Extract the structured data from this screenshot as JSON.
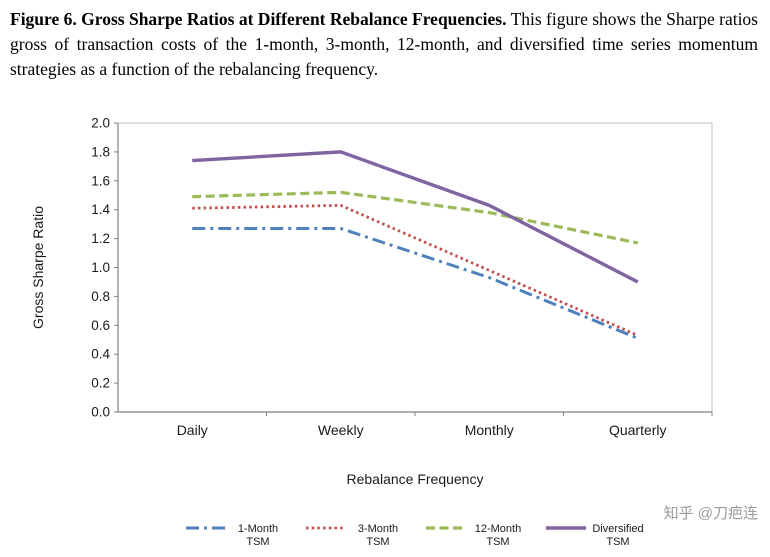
{
  "caption": {
    "bold": "Figure 6. Gross Sharpe Ratios at Different Rebalance Frequencies.",
    "rest": " This figure shows the Sharpe ratios gross of transaction costs of the 1-month, 3-month, 12-month, and diversified time series momentum strategies as a function of the rebalancing frequency."
  },
  "watermark": {
    "text": "知乎 @刀疤连"
  },
  "chart_data": {
    "type": "line",
    "title": "",
    "categories": [
      "Daily",
      "Weekly",
      "Monthly",
      "Quarterly"
    ],
    "series": [
      {
        "name": "1-Month TSM",
        "legend_lines": [
          "1-Month",
          "TSM"
        ],
        "values": [
          1.27,
          1.27,
          0.93,
          0.51
        ],
        "color": "#4F81BD",
        "dash": "dash-dot"
      },
      {
        "name": "3-Month TSM",
        "legend_lines": [
          "3-Month",
          "TSM"
        ],
        "values": [
          1.41,
          1.43,
          0.98,
          0.53
        ],
        "color": "#C0504D",
        "dash": "dotted"
      },
      {
        "name": "12-Month TSM",
        "legend_lines": [
          "12-Month",
          "TSM"
        ],
        "values": [
          1.49,
          1.52,
          1.38,
          1.17
        ],
        "color": "#9BBB59",
        "dash": "dashed"
      },
      {
        "name": "Diversified TSM",
        "legend_lines": [
          "Diversified",
          "TSM"
        ],
        "values": [
          1.74,
          1.8,
          1.43,
          0.9
        ],
        "color": "#8064A2",
        "dash": "solid"
      }
    ],
    "xlabel": "Rebalance Frequency",
    "ylabel": "Gross Sharpe Ratio",
    "ylim": [
      0.0,
      2.0
    ],
    "ytick_step": 0.2,
    "grid": false,
    "legend_position": "bottom",
    "axis_color": "#808080",
    "border_color": "#bfbfbf"
  }
}
